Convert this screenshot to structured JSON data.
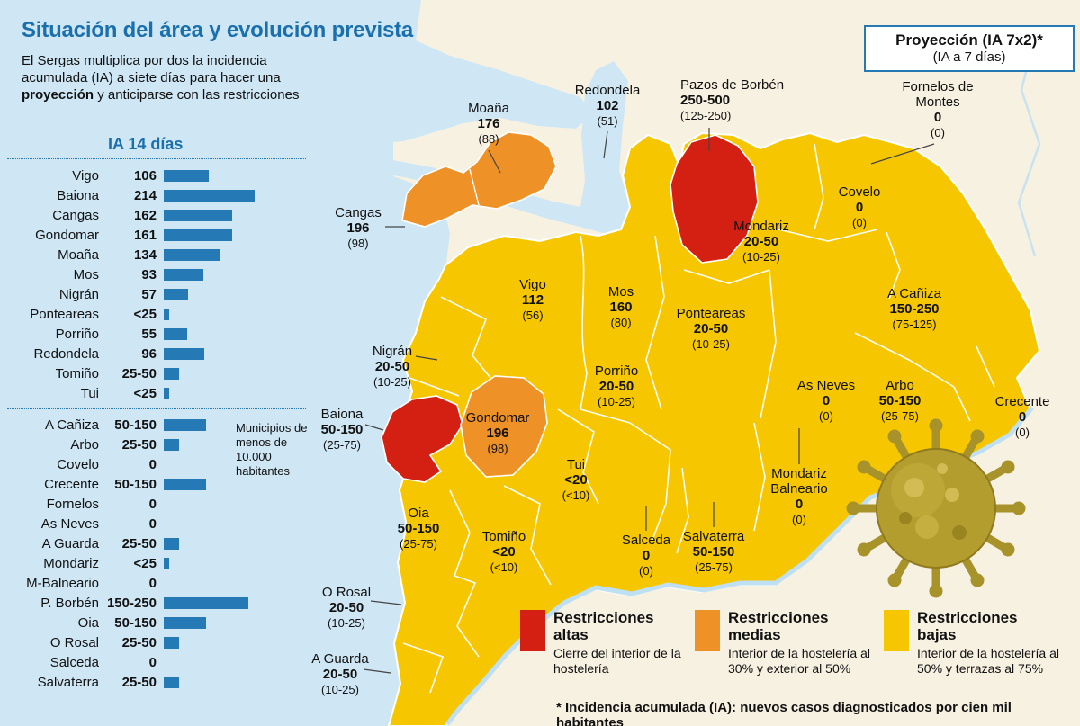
{
  "header": {
    "title": "Situación del área y evolución prevista",
    "intro_part1": "El Sergas multiplica por dos la incidencia acumulada (IA) a siete días para hacer una ",
    "intro_bold": "proyección",
    "intro_part2": " y anticiparse con las restricciones",
    "projection_title": "Proyección (IA 7x2)*",
    "projection_sub": "(IA a 7 días)"
  },
  "colors": {
    "red": "#d32013",
    "orange": "#ee9126",
    "yellow": "#f6c700",
    "water": "#cfe7f5",
    "cream": "#f7f1e2",
    "bar_blue": "#2579b5",
    "title_blue": "#1a6fad"
  },
  "chart_data": {
    "type": "bar",
    "title": "IA 14 días",
    "orientation": "horizontal",
    "note": "Municipios de menos de 10.000 habitantes",
    "unit": "incidencia acumulada a 14 días (casos por cien mil habitantes)",
    "rows": [
      {
        "label": "Vigo",
        "value": "106",
        "magnitude": 106
      },
      {
        "label": "Baiona",
        "value": "214",
        "magnitude": 214
      },
      {
        "label": "Cangas",
        "value": "162",
        "magnitude": 162
      },
      {
        "label": "Gondomar",
        "value": "161",
        "magnitude": 161
      },
      {
        "label": "Moaña",
        "value": "134",
        "magnitude": 134
      },
      {
        "label": "Mos",
        "value": "93",
        "magnitude": 93
      },
      {
        "label": "Nigrán",
        "value": "57",
        "magnitude": 57
      },
      {
        "label": "Ponteareas",
        "value": "<25",
        "magnitude": 12
      },
      {
        "label": "Porriño",
        "value": "55",
        "magnitude": 55
      },
      {
        "label": "Redondela",
        "value": "96",
        "magnitude": 96
      },
      {
        "label": "Tomiño",
        "value": "25-50",
        "magnitude": 37
      },
      {
        "label": "Tui",
        "value": "<25",
        "magnitude": 12
      },
      {
        "label": "A Cañiza",
        "value": "50-150",
        "magnitude": 100
      },
      {
        "label": "Arbo",
        "value": "25-50",
        "magnitude": 37
      },
      {
        "label": "Covelo",
        "value": "0",
        "magnitude": 0
      },
      {
        "label": "Crecente",
        "value": "50-150",
        "magnitude": 100
      },
      {
        "label": "Fornelos",
        "value": "0",
        "magnitude": 0
      },
      {
        "label": "As Neves",
        "value": "0",
        "magnitude": 0
      },
      {
        "label": "A Guarda",
        "value": "25-50",
        "magnitude": 37
      },
      {
        "label": "Mondariz",
        "value": "<25",
        "magnitude": 12
      },
      {
        "label": "M-Balneario",
        "value": "0",
        "magnitude": 0
      },
      {
        "label": "P. Borbén",
        "value": "150-250",
        "magnitude": 200
      },
      {
        "label": "Oia",
        "value": "50-150",
        "magnitude": 100
      },
      {
        "label": "O Rosal",
        "value": "25-50",
        "magnitude": 37
      },
      {
        "label": "Salceda",
        "value": "0",
        "magnitude": 0
      },
      {
        "label": "Salvaterra",
        "value": "25-50",
        "magnitude": 37
      }
    ]
  },
  "map": {
    "municipalities": [
      {
        "name": "Moaña",
        "value": "176",
        "prev": "(88)",
        "level": "media"
      },
      {
        "name": "Redondela",
        "value": "102",
        "prev": "(51)",
        "level": "baja"
      },
      {
        "name": "Pazos de Borbén",
        "value": "250-500",
        "prev": "(125-250)",
        "level": "alta"
      },
      {
        "name": "Fornelos de Montes",
        "value": "0",
        "prev": "(0)",
        "level": "baja"
      },
      {
        "name": "Cangas",
        "value": "196",
        "prev": "(98)",
        "level": "media"
      },
      {
        "name": "Covelo",
        "value": "0",
        "prev": "(0)",
        "level": "baja"
      },
      {
        "name": "Mondariz",
        "value": "20-50",
        "prev": "(10-25)",
        "level": "baja"
      },
      {
        "name": "Vigo",
        "value": "112",
        "prev": "(56)",
        "level": "baja"
      },
      {
        "name": "Mos",
        "value": "160",
        "prev": "(80)",
        "level": "baja"
      },
      {
        "name": "Ponteareas",
        "value": "20-50",
        "prev": "(10-25)",
        "level": "baja"
      },
      {
        "name": "A Cañiza",
        "value": "150-250",
        "prev": "(75-125)",
        "level": "baja"
      },
      {
        "name": "Nigrán",
        "value": "20-50",
        "prev": "(10-25)",
        "level": "baja"
      },
      {
        "name": "Porriño",
        "value": "20-50",
        "prev": "(10-25)",
        "level": "baja"
      },
      {
        "name": "As Neves",
        "value": "0",
        "prev": "(0)",
        "level": "baja"
      },
      {
        "name": "Arbo",
        "value": "50-150",
        "prev": "(25-75)",
        "level": "baja"
      },
      {
        "name": "Crecente",
        "value": "0",
        "prev": "(0)",
        "level": "baja"
      },
      {
        "name": "Baiona",
        "value": "50-150",
        "prev": "(25-75)",
        "level": "alta"
      },
      {
        "name": "Gondomar",
        "value": "196",
        "prev": "(98)",
        "level": "media"
      },
      {
        "name": "Tui",
        "value": "<20",
        "prev": "(<10)",
        "level": "baja"
      },
      {
        "name": "Mondariz Balneario",
        "value": "0",
        "prev": "(0)",
        "level": "baja"
      },
      {
        "name": "Oia",
        "value": "50-150",
        "prev": "(25-75)",
        "level": "baja"
      },
      {
        "name": "Tomiño",
        "value": "<20",
        "prev": "(<10)",
        "level": "baja"
      },
      {
        "name": "Salceda",
        "value": "0",
        "prev": "(0)",
        "level": "baja"
      },
      {
        "name": "Salvaterra",
        "value": "50-150",
        "prev": "(25-75)",
        "level": "baja"
      },
      {
        "name": "O Rosal",
        "value": "20-50",
        "prev": "(10-25)",
        "level": "baja"
      },
      {
        "name": "A Guarda",
        "value": "20-50",
        "prev": "(10-25)",
        "level": "baja"
      }
    ]
  },
  "legend": {
    "items": [
      {
        "title": "Restricciones altas",
        "desc": "Cierre del interior de la hostelería",
        "color": "#d32013"
      },
      {
        "title": "Restricciones medias",
        "desc": "Interior de la hostelería al 30% y exterior al 50%",
        "color": "#ee9126"
      },
      {
        "title": "Restricciones bajas",
        "desc": "Interior de la hostelería al 50% y terrazas al 75%",
        "color": "#f6c700"
      }
    ]
  },
  "footnote": "* Incidencia acumulada (IA): nuevos casos diagnosticados por cien mil habitantes"
}
